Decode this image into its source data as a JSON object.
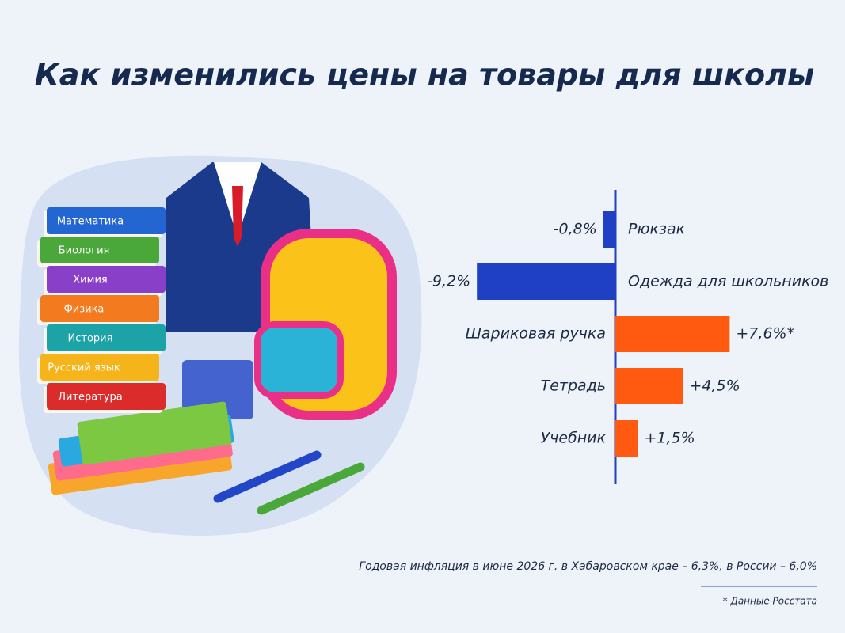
{
  "chart_data": {
    "type": "hbar",
    "title": "Как изменились цены на товары для школы",
    "categories": [
      "Рюкзак",
      "Одежда для школьников",
      "Шариковая ручка",
      "Тетрадь",
      "Учебник"
    ],
    "values": [
      -0.8,
      -9.2,
      7.6,
      4.5,
      1.5
    ],
    "value_labels": [
      "-0,8%",
      "-9,2%",
      "+7,6%*",
      "+4,5%",
      "+1,5%"
    ],
    "colors": [
      "#1f3fc4",
      "#1f3fc4",
      "#ff5a0f",
      "#ff5a0f",
      "#ff5a0f"
    ],
    "note": "Годовая инфляция в июне 2026 г. в Хабаровском крае – 6,3%, в России – 6,0%",
    "source": "* Данные Росстата"
  },
  "illustration": {
    "book_labels": [
      "Математика",
      "Биология",
      "Химия",
      "Физика",
      "История",
      "Русский язык",
      "Литература"
    ]
  }
}
